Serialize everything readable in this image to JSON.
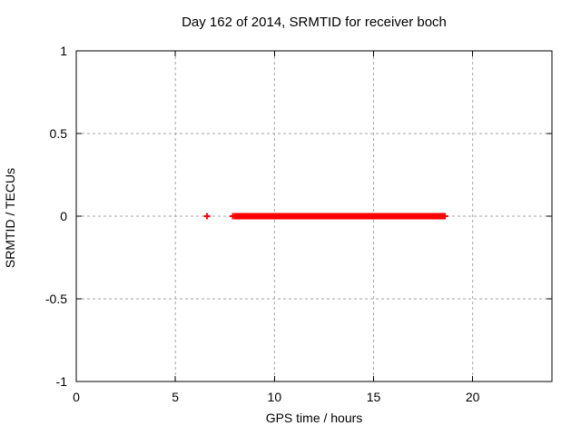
{
  "chart_data": {
    "type": "scatter",
    "title": "Day 162 of 2014, SRMTID for receiver boch",
    "xlabel": "GPS time / hours",
    "ylabel": "SRMTID / TECUs",
    "xlim": [
      0,
      24
    ],
    "ylim": [
      -1,
      1
    ],
    "x_ticks": [
      0,
      5,
      10,
      15,
      20
    ],
    "y_ticks": [
      1,
      0.5,
      0,
      -0.5,
      -1
    ],
    "grid": true,
    "legend": "none",
    "series": [
      {
        "name": "SRMTID",
        "marker": "plus",
        "color": "#ff0000",
        "isolated_points": [
          {
            "x": 6.6,
            "y": 0
          },
          {
            "x": 7.9,
            "y": 0
          }
        ],
        "dense_segments": [
          {
            "x_start": 8.0,
            "x_end": 18.6,
            "y": 0
          }
        ]
      }
    ]
  },
  "colors": {
    "data": "#ff0000",
    "grid": "#a6a6a6",
    "axis": "#000000",
    "background": "#ffffff"
  }
}
